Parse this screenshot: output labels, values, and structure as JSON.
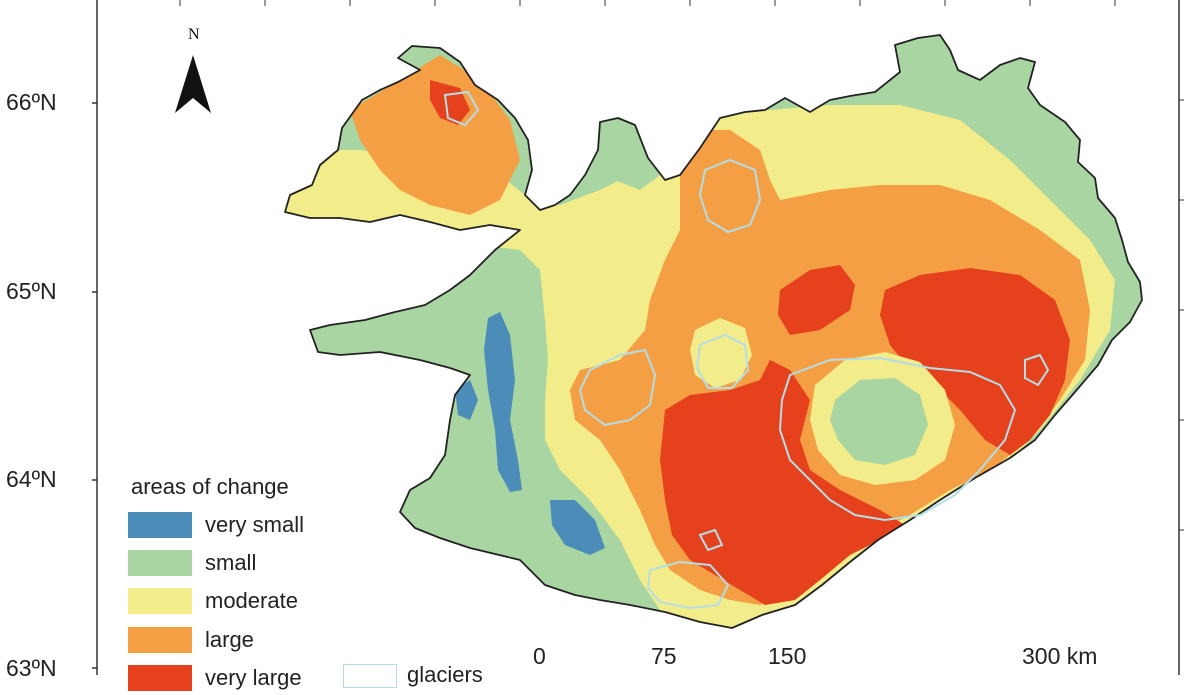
{
  "latitude_labels": [
    {
      "label": "66ºN"
    },
    {
      "label": "65ºN"
    },
    {
      "label": "64ºN"
    },
    {
      "label": "63ºN"
    }
  ],
  "north_arrow": {
    "label": "N",
    "icon": "north-arrow-icon"
  },
  "legend": {
    "title": "areas of change",
    "items": [
      {
        "label": "very small",
        "color": "#4b8cb8"
      },
      {
        "label": "small",
        "color": "#a8d5a2"
      },
      {
        "label": "moderate",
        "color": "#f2ec8a"
      },
      {
        "label": "large",
        "color": "#f59f45"
      },
      {
        "label": "very large",
        "color": "#e5411d"
      }
    ],
    "glaciers": {
      "label": "glaciers",
      "color": "#b4dde6"
    }
  },
  "scale_bar": {
    "labels": [
      "0",
      "75",
      "150",
      "300 km"
    ]
  },
  "colors": {
    "background": "#ffffff",
    "frame": "#333333",
    "coastline": "#222222",
    "glacier_outline": "#b4dde6"
  }
}
